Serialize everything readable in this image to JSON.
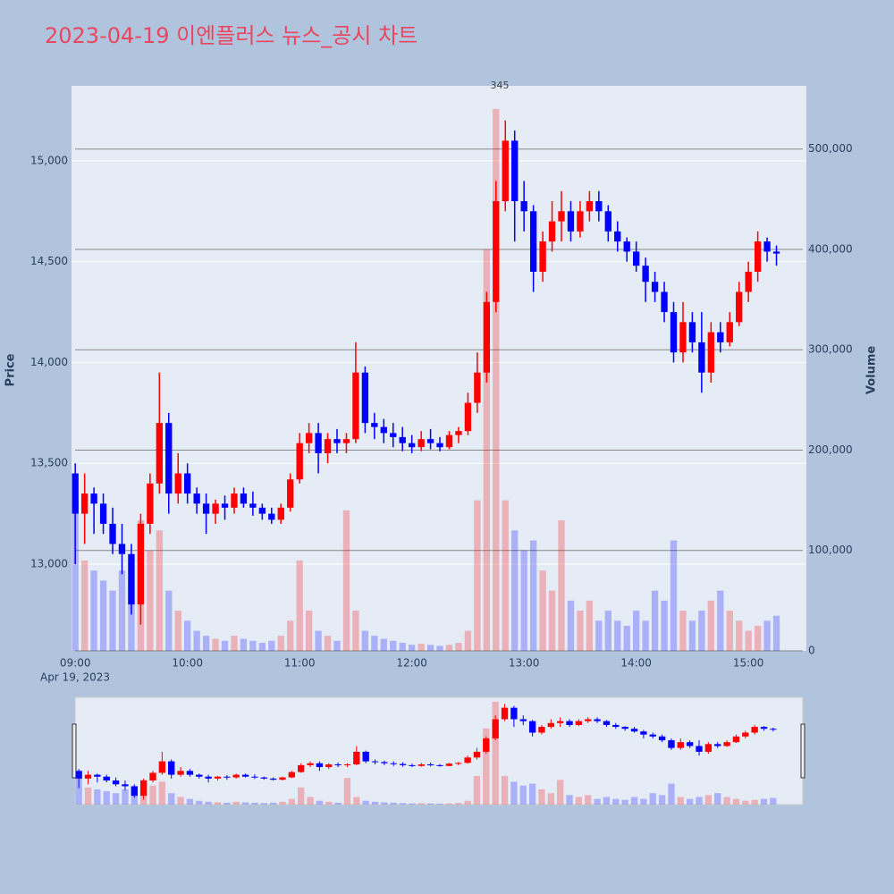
{
  "chart_data": {
    "type": "candlestick",
    "title": "2023-04-19 이엔플러스 뉴스_공시 차트",
    "y_axis_label": "Price",
    "y2_axis_label": "Volume",
    "x_date_label": "Apr 19, 2023",
    "increasing_color": "#ff0000",
    "decreasing_color": "#0000ff",
    "xlim": [
      "08:58",
      "15:31"
    ],
    "xticks": [
      "09:00",
      "10:00",
      "11:00",
      "12:00",
      "13:00",
      "14:00",
      "15:00"
    ],
    "ylim": [
      12570,
      15372
    ],
    "yticks": [
      {
        "value": 13000,
        "label": "13,000"
      },
      {
        "value": 13500,
        "label": "13,500"
      },
      {
        "value": 14000,
        "label": "14,000"
      },
      {
        "value": 14500,
        "label": "14,500"
      },
      {
        "value": 15000,
        "label": "15,000"
      }
    ],
    "y2lim": [
      0,
      563000
    ],
    "y2ticks": [
      0,
      {
        "value": 100000,
        "label": "100,000"
      },
      {
        "value": 200000,
        "label": "200,000"
      },
      {
        "value": 300000,
        "label": "300,000"
      },
      {
        "value": 400000,
        "label": "400,000"
      },
      {
        "value": 500000,
        "label": "500,000"
      }
    ],
    "annotations": [
      {
        "text": "345",
        "x": "12:47"
      }
    ],
    "x": [
      "09:00",
      "09:05",
      "09:10",
      "09:15",
      "09:20",
      "09:25",
      "09:30",
      "09:35",
      "09:40",
      "09:45",
      "09:50",
      "09:55",
      "10:00",
      "10:05",
      "10:10",
      "10:15",
      "10:20",
      "10:25",
      "10:30",
      "10:35",
      "10:40",
      "10:45",
      "10:50",
      "10:55",
      "11:00",
      "11:05",
      "11:10",
      "11:15",
      "11:20",
      "11:25",
      "11:30",
      "11:35",
      "11:40",
      "11:45",
      "11:50",
      "11:55",
      "12:00",
      "12:05",
      "12:10",
      "12:15",
      "12:20",
      "12:25",
      "12:30",
      "12:35",
      "12:40",
      "12:45",
      "12:50",
      "12:55",
      "13:00",
      "13:05",
      "13:10",
      "13:15",
      "13:20",
      "13:25",
      "13:30",
      "13:35",
      "13:40",
      "13:45",
      "13:50",
      "13:55",
      "14:00",
      "14:05",
      "14:10",
      "14:15",
      "14:20",
      "14:25",
      "14:30",
      "14:35",
      "14:40",
      "14:45",
      "14:50",
      "14:55",
      "15:00",
      "15:05",
      "15:10",
      "15:15"
    ],
    "open": [
      13450,
      13250,
      13350,
      13300,
      13200,
      13100,
      13050,
      12800,
      13200,
      13400,
      13700,
      13350,
      13450,
      13350,
      13300,
      13250,
      13300,
      13280,
      13350,
      13300,
      13280,
      13250,
      13220,
      13280,
      13420,
      13600,
      13650,
      13550,
      13620,
      13600,
      13620,
      13950,
      13700,
      13680,
      13650,
      13630,
      13600,
      13580,
      13620,
      13600,
      13580,
      13640,
      13660,
      13800,
      13950,
      14300,
      14800,
      15100,
      14800,
      14750,
      14450,
      14600,
      14700,
      14750,
      14650,
      14750,
      14800,
      14750,
      14650,
      14600,
      14550,
      14480,
      14400,
      14350,
      14250,
      14050,
      14200,
      14100,
      13950,
      14150,
      14100,
      14200,
      14350,
      14450,
      14600,
      14550
    ],
    "high": [
      13500,
      13450,
      13380,
      13350,
      13280,
      13200,
      13100,
      13250,
      13450,
      13950,
      13750,
      13550,
      13500,
      13380,
      13350,
      13320,
      13340,
      13380,
      13380,
      13360,
      13300,
      13280,
      13300,
      13450,
      13650,
      13700,
      13700,
      13650,
      13670,
      13650,
      14100,
      13980,
      13750,
      13720,
      13700,
      13680,
      13640,
      13660,
      13670,
      13630,
      13660,
      13680,
      13850,
      14050,
      14350,
      14900,
      15200,
      15150,
      14900,
      14780,
      14650,
      14800,
      14850,
      14800,
      14800,
      14850,
      14850,
      14780,
      14700,
      14620,
      14600,
      14520,
      14450,
      14400,
      14300,
      14300,
      14250,
      14250,
      14200,
      14200,
      14250,
      14400,
      14500,
      14650,
      14620,
      14580
    ],
    "low": [
      13000,
      13100,
      13150,
      13150,
      13050,
      12950,
      12750,
      12700,
      13150,
      13350,
      13250,
      13300,
      13300,
      13250,
      13150,
      13200,
      13220,
      13250,
      13280,
      13240,
      13220,
      13200,
      13200,
      13260,
      13400,
      13550,
      13450,
      13500,
      13550,
      13550,
      13600,
      13650,
      13620,
      13600,
      13580,
      13560,
      13550,
      13560,
      13570,
      13560,
      13570,
      13600,
      13640,
      13750,
      13900,
      14250,
      14750,
      14600,
      14650,
      14350,
      14400,
      14550,
      14600,
      14600,
      14620,
      14700,
      14700,
      14600,
      14550,
      14500,
      14450,
      14300,
      14300,
      14200,
      14000,
      14000,
      14050,
      13850,
      13900,
      14050,
      14080,
      14180,
      14300,
      14400,
      14500,
      14480
    ],
    "close": [
      13250,
      13350,
      13300,
      13200,
      13100,
      13050,
      12800,
      13200,
      13400,
      13700,
      13350,
      13450,
      13350,
      13300,
      13250,
      13300,
      13280,
      13350,
      13300,
      13280,
      13250,
      13220,
      13280,
      13420,
      13600,
      13650,
      13550,
      13620,
      13600,
      13620,
      13950,
      13700,
      13680,
      13650,
      13630,
      13600,
      13580,
      13620,
      13600,
      13580,
      13640,
      13660,
      13800,
      13950,
      14300,
      14800,
      15100,
      14800,
      14750,
      14450,
      14600,
      14700,
      14750,
      14650,
      14750,
      14800,
      14750,
      14650,
      14600,
      14550,
      14480,
      14400,
      14350,
      14250,
      14050,
      14200,
      14100,
      13950,
      14150,
      14100,
      14200,
      14350,
      14450,
      14600,
      14550,
      14540
    ],
    "volume": [
      150000,
      90000,
      80000,
      70000,
      60000,
      80000,
      70000,
      130000,
      100000,
      120000,
      60000,
      40000,
      30000,
      20000,
      15000,
      12000,
      10000,
      15000,
      12000,
      10000,
      8000,
      10000,
      15000,
      30000,
      90000,
      40000,
      20000,
      15000,
      10000,
      140000,
      40000,
      20000,
      15000,
      12000,
      10000,
      8000,
      6000,
      7000,
      6000,
      5000,
      6000,
      8000,
      20000,
      150000,
      400000,
      540000,
      150000,
      120000,
      100000,
      110000,
      80000,
      60000,
      130000,
      50000,
      40000,
      50000,
      30000,
      40000,
      30000,
      25000,
      40000,
      30000,
      60000,
      50000,
      110000,
      40000,
      30000,
      40000,
      50000,
      60000,
      40000,
      30000,
      20000,
      25000,
      30000,
      35000
    ]
  }
}
